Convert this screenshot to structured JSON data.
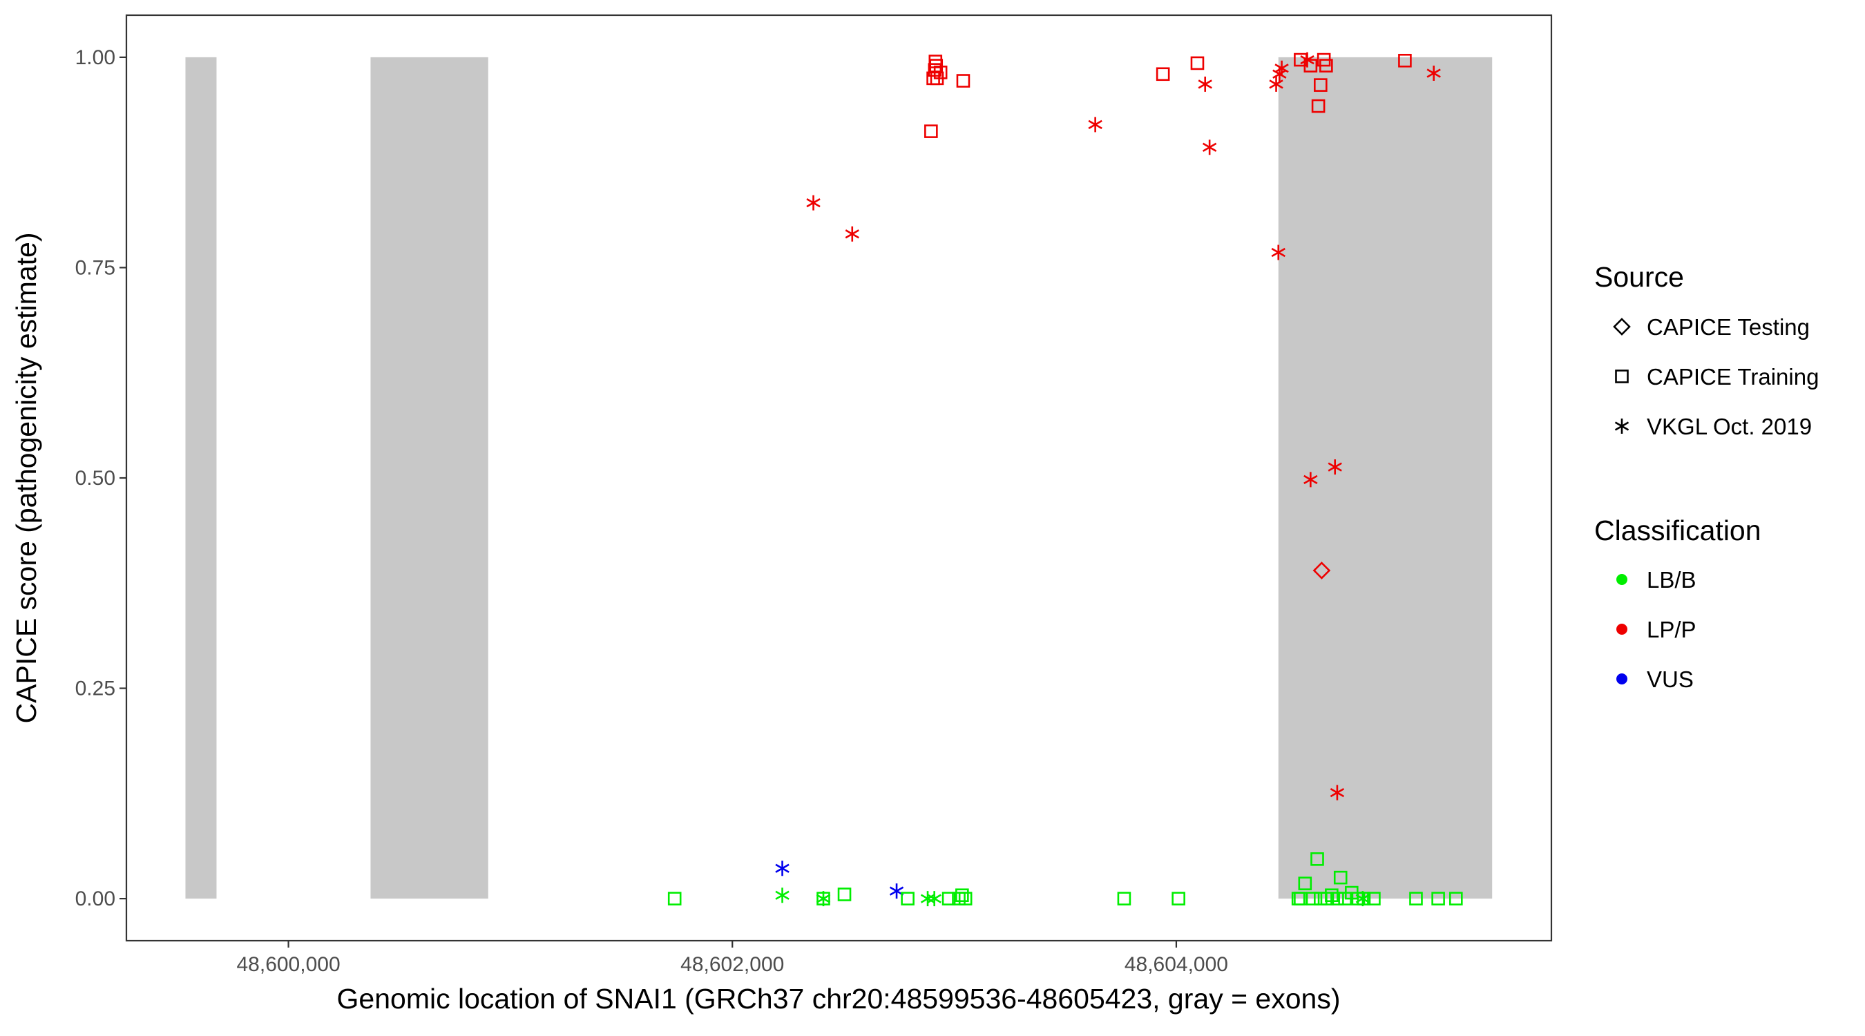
{
  "chart_data": {
    "type": "scatter",
    "xlabel": "Genomic location of SNAI1 (GRCh37 chr20:48599536-48605423, gray = exons)",
    "ylabel": "CAPICE score (pathogenicity estimate)",
    "xlim": [
      48599270,
      48605690
    ],
    "ylim": [
      -0.05,
      1.05
    ],
    "x_ticks": [
      48600000,
      48602000,
      48604000
    ],
    "x_tick_labels": [
      "48,600,000",
      "48,602,000",
      "48,604,000"
    ],
    "y_ticks": [
      0.0,
      0.25,
      0.5,
      0.75,
      1.0
    ],
    "y_tick_labels": [
      "0.00",
      "0.25",
      "0.50",
      "0.75",
      "1.00"
    ],
    "grid": false,
    "exons": [
      {
        "start": 48599536,
        "end": 48599676
      },
      {
        "start": 48600370,
        "end": 48600900
      },
      {
        "start": 48604460,
        "end": 48605423
      }
    ],
    "legend_position": "right",
    "legends": {
      "source": {
        "title": "Source",
        "items": [
          {
            "key": "testing",
            "label": "CAPICE Testing",
            "shape": "diamond"
          },
          {
            "key": "training",
            "label": "CAPICE Training",
            "shape": "square"
          },
          {
            "key": "vkgl",
            "label": "VKGL Oct. 2019",
            "shape": "asterisk"
          }
        ]
      },
      "classification": {
        "title": "Classification",
        "items": [
          {
            "key": "LB/B",
            "label": "LB/B",
            "color": "#00ee00"
          },
          {
            "key": "LP/P",
            "label": "LP/P",
            "color": "#ee0000"
          },
          {
            "key": "VUS",
            "label": "VUS",
            "color": "#0000ee"
          }
        ]
      }
    },
    "points": [
      {
        "x": 48602895,
        "y": 0.912,
        "source": "training",
        "class": "LP/P"
      },
      {
        "x": 48602905,
        "y": 0.975,
        "source": "training",
        "class": "LP/P"
      },
      {
        "x": 48602912,
        "y": 0.985,
        "source": "training",
        "class": "LP/P"
      },
      {
        "x": 48602915,
        "y": 0.995,
        "source": "training",
        "class": "LP/P"
      },
      {
        "x": 48602918,
        "y": 0.99,
        "source": "training",
        "class": "LP/P"
      },
      {
        "x": 48602922,
        "y": 0.975,
        "source": "training",
        "class": "LP/P"
      },
      {
        "x": 48602938,
        "y": 0.982,
        "source": "training",
        "class": "LP/P"
      },
      {
        "x": 48603040,
        "y": 0.972,
        "source": "training",
        "class": "LP/P"
      },
      {
        "x": 48603940,
        "y": 0.98,
        "source": "training",
        "class": "LP/P"
      },
      {
        "x": 48604095,
        "y": 0.993,
        "source": "training",
        "class": "LP/P"
      },
      {
        "x": 48604560,
        "y": 0.997,
        "source": "training",
        "class": "LP/P"
      },
      {
        "x": 48604605,
        "y": 0.99,
        "source": "training",
        "class": "LP/P"
      },
      {
        "x": 48604640,
        "y": 0.942,
        "source": "training",
        "class": "LP/P"
      },
      {
        "x": 48604650,
        "y": 0.967,
        "source": "training",
        "class": "LP/P"
      },
      {
        "x": 48604665,
        "y": 0.997,
        "source": "training",
        "class": "LP/P"
      },
      {
        "x": 48604675,
        "y": 0.99,
        "source": "training",
        "class": "LP/P"
      },
      {
        "x": 48605030,
        "y": 0.996,
        "source": "training",
        "class": "LP/P"
      },
      {
        "x": 48602365,
        "y": 0.827,
        "source": "vkgl",
        "class": "LP/P"
      },
      {
        "x": 48602540,
        "y": 0.79,
        "source": "vkgl",
        "class": "LP/P"
      },
      {
        "x": 48603635,
        "y": 0.92,
        "source": "vkgl",
        "class": "LP/P"
      },
      {
        "x": 48604130,
        "y": 0.968,
        "source": "vkgl",
        "class": "LP/P"
      },
      {
        "x": 48604150,
        "y": 0.893,
        "source": "vkgl",
        "class": "LP/P"
      },
      {
        "x": 48604450,
        "y": 0.968,
        "source": "vkgl",
        "class": "LP/P"
      },
      {
        "x": 48604465,
        "y": 0.98,
        "source": "vkgl",
        "class": "LP/P"
      },
      {
        "x": 48604475,
        "y": 0.987,
        "source": "vkgl",
        "class": "LP/P"
      },
      {
        "x": 48604460,
        "y": 0.768,
        "source": "vkgl",
        "class": "LP/P"
      },
      {
        "x": 48604590,
        "y": 0.997,
        "source": "vkgl",
        "class": "LP/P"
      },
      {
        "x": 48604605,
        "y": 0.498,
        "source": "vkgl",
        "class": "LP/P"
      },
      {
        "x": 48604715,
        "y": 0.513,
        "source": "vkgl",
        "class": "LP/P"
      },
      {
        "x": 48604725,
        "y": 0.126,
        "source": "vkgl",
        "class": "LP/P"
      },
      {
        "x": 48605160,
        "y": 0.981,
        "source": "vkgl",
        "class": "LP/P"
      },
      {
        "x": 48604655,
        "y": 0.39,
        "source": "testing",
        "class": "LP/P"
      },
      {
        "x": 48602225,
        "y": 0.036,
        "source": "vkgl",
        "class": "VUS"
      },
      {
        "x": 48602740,
        "y": 0.009,
        "source": "vkgl",
        "class": "VUS"
      },
      {
        "x": 48601740,
        "y": 0.0,
        "source": "training",
        "class": "LB/B"
      },
      {
        "x": 48602410,
        "y": 0.0,
        "source": "training",
        "class": "LB/B"
      },
      {
        "x": 48602505,
        "y": 0.005,
        "source": "training",
        "class": "LB/B"
      },
      {
        "x": 48602790,
        "y": 0.0,
        "source": "training",
        "class": "LB/B"
      },
      {
        "x": 48602975,
        "y": 0.0,
        "source": "training",
        "class": "LB/B"
      },
      {
        "x": 48603020,
        "y": 0.0,
        "source": "training",
        "class": "LB/B"
      },
      {
        "x": 48603035,
        "y": 0.004,
        "source": "training",
        "class": "LB/B"
      },
      {
        "x": 48603050,
        "y": 0.0,
        "source": "training",
        "class": "LB/B"
      },
      {
        "x": 48603765,
        "y": 0.0,
        "source": "training",
        "class": "LB/B"
      },
      {
        "x": 48604010,
        "y": 0.0,
        "source": "training",
        "class": "LB/B"
      },
      {
        "x": 48604550,
        "y": 0.0,
        "source": "training",
        "class": "LB/B"
      },
      {
        "x": 48604560,
        "y": 0.0,
        "source": "training",
        "class": "LB/B"
      },
      {
        "x": 48604580,
        "y": 0.018,
        "source": "training",
        "class": "LB/B"
      },
      {
        "x": 48604615,
        "y": 0.0,
        "source": "training",
        "class": "LB/B"
      },
      {
        "x": 48604635,
        "y": 0.047,
        "source": "training",
        "class": "LB/B"
      },
      {
        "x": 48604650,
        "y": 0.0,
        "source": "training",
        "class": "LB/B"
      },
      {
        "x": 48604680,
        "y": 0.0,
        "source": "training",
        "class": "LB/B"
      },
      {
        "x": 48604700,
        "y": 0.004,
        "source": "training",
        "class": "LB/B"
      },
      {
        "x": 48604725,
        "y": 0.0,
        "source": "training",
        "class": "LB/B"
      },
      {
        "x": 48604740,
        "y": 0.025,
        "source": "training",
        "class": "LB/B"
      },
      {
        "x": 48604760,
        "y": 0.0,
        "source": "training",
        "class": "LB/B"
      },
      {
        "x": 48604790,
        "y": 0.007,
        "source": "training",
        "class": "LB/B"
      },
      {
        "x": 48604820,
        "y": 0.0,
        "source": "training",
        "class": "LB/B"
      },
      {
        "x": 48604845,
        "y": 0.0,
        "source": "training",
        "class": "LB/B"
      },
      {
        "x": 48604890,
        "y": 0.0,
        "source": "training",
        "class": "LB/B"
      },
      {
        "x": 48605080,
        "y": 0.0,
        "source": "training",
        "class": "LB/B"
      },
      {
        "x": 48605180,
        "y": 0.0,
        "source": "training",
        "class": "LB/B"
      },
      {
        "x": 48605260,
        "y": 0.0,
        "source": "training",
        "class": "LB/B"
      },
      {
        "x": 48602225,
        "y": 0.004,
        "source": "vkgl",
        "class": "LB/B"
      },
      {
        "x": 48602410,
        "y": 0.0,
        "source": "vkgl",
        "class": "LB/B"
      },
      {
        "x": 48602880,
        "y": 0.0,
        "source": "vkgl",
        "class": "LB/B"
      },
      {
        "x": 48602910,
        "y": 0.0,
        "source": "vkgl",
        "class": "LB/B"
      },
      {
        "x": 48604840,
        "y": 0.0,
        "source": "vkgl",
        "class": "LB/B"
      }
    ]
  }
}
